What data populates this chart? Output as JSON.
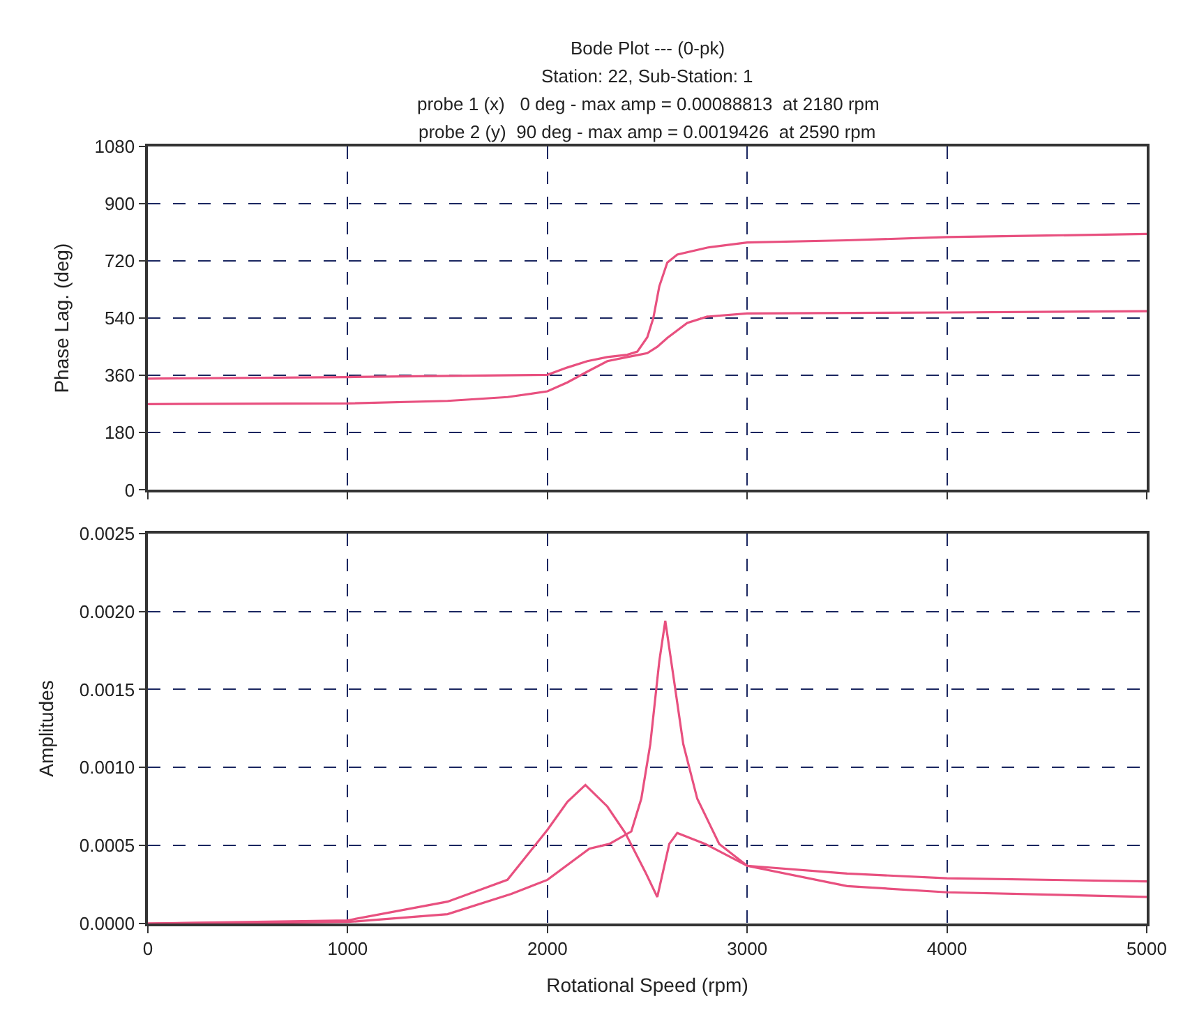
{
  "chart_data": [
    {
      "type": "line",
      "title": "Bode Plot --- (0-pk)",
      "subtitle": "Station: 22, Sub-Station: 1",
      "annotations": [
        "probe 1 (x)   0 deg - max amp = 0.00088813  at 2180 rpm",
        "probe 2 (y)  90 deg - max amp = 0.0019426  at 2590 rpm"
      ],
      "ylabel": "Phase Lag. (deg)",
      "xlim": [
        0,
        5000
      ],
      "xticks": [
        0,
        1000,
        2000,
        3000,
        4000,
        5000
      ],
      "ylim": [
        0,
        1080
      ],
      "yticks": [
        0,
        180,
        360,
        540,
        720,
        900,
        1080
      ],
      "grid": true,
      "tick_labels": "y",
      "marker": "none",
      "line_style": "solid",
      "series": [
        {
          "color": "#e8507f",
          "x": [
            0,
            1000,
            1500,
            1800,
            2000,
            2100,
            2200,
            2300,
            2400,
            2500,
            2550,
            2600,
            2700,
            2800,
            3000,
            4000,
            5000
          ],
          "values": [
            270,
            272,
            280,
            292,
            310,
            338,
            372,
            405,
            418,
            430,
            450,
            478,
            525,
            545,
            555,
            558,
            562
          ]
        },
        {
          "color": "#e8507f",
          "x": [
            0,
            1000,
            2000,
            2100,
            2200,
            2300,
            2400,
            2450,
            2500,
            2530,
            2560,
            2600,
            2650,
            2800,
            3000,
            3500,
            4000,
            4500,
            5000
          ],
          "values": [
            350,
            355,
            362,
            385,
            405,
            418,
            425,
            435,
            480,
            540,
            640,
            715,
            740,
            762,
            778,
            785,
            795,
            800,
            805
          ]
        }
      ]
    },
    {
      "type": "line",
      "xlabel": "Rotational Speed (rpm)",
      "ylabel": "Amplitudes",
      "xlim": [
        0,
        5000
      ],
      "xticks": [
        0,
        1000,
        2000,
        3000,
        4000,
        5000
      ],
      "ylim": [
        0,
        0.0025
      ],
      "yticks": [
        {
          "value": 0,
          "label": "0.0000"
        },
        {
          "value": 0.0005,
          "label": "0.0005"
        },
        {
          "value": 0.001,
          "label": "0.0010"
        },
        {
          "value": 0.0015,
          "label": "0.0015"
        },
        {
          "value": 0.002,
          "label": "0.0020"
        },
        {
          "value": 0.0025,
          "label": "0.0025"
        }
      ],
      "grid": true,
      "marker": "none",
      "line_style": "solid",
      "series": [
        {
          "color": "#e8507f",
          "x": [
            0,
            1000,
            1500,
            1800,
            2000,
            2100,
            2190,
            2300,
            2390,
            2490,
            2550,
            2610,
            2650,
            2790,
            3000,
            3500,
            4000,
            5000
          ],
          "values": [
            0,
            2e-05,
            0.00014,
            0.00028,
            0.0006,
            0.00078,
            0.000888,
            0.00075,
            0.00058,
            0.00033,
            0.00017,
            0.00051,
            0.00058,
            0.00051,
            0.00037,
            0.00032,
            0.00029,
            0.00027
          ]
        },
        {
          "color": "#e8507f",
          "x": [
            0,
            1000,
            1500,
            1820,
            2000,
            2210,
            2310,
            2420,
            2470,
            2515,
            2560,
            2590,
            2630,
            2680,
            2750,
            2860,
            3000,
            3500,
            4000,
            5000
          ],
          "values": [
            0,
            1e-05,
            6e-05,
            0.00019,
            0.00028,
            0.00048,
            0.00051,
            0.00059,
            0.0008,
            0.00115,
            0.00168,
            0.00194,
            0.00159,
            0.00115,
            0.0008,
            0.00051,
            0.00037,
            0.00024,
            0.0002,
            0.00017
          ]
        }
      ]
    }
  ]
}
